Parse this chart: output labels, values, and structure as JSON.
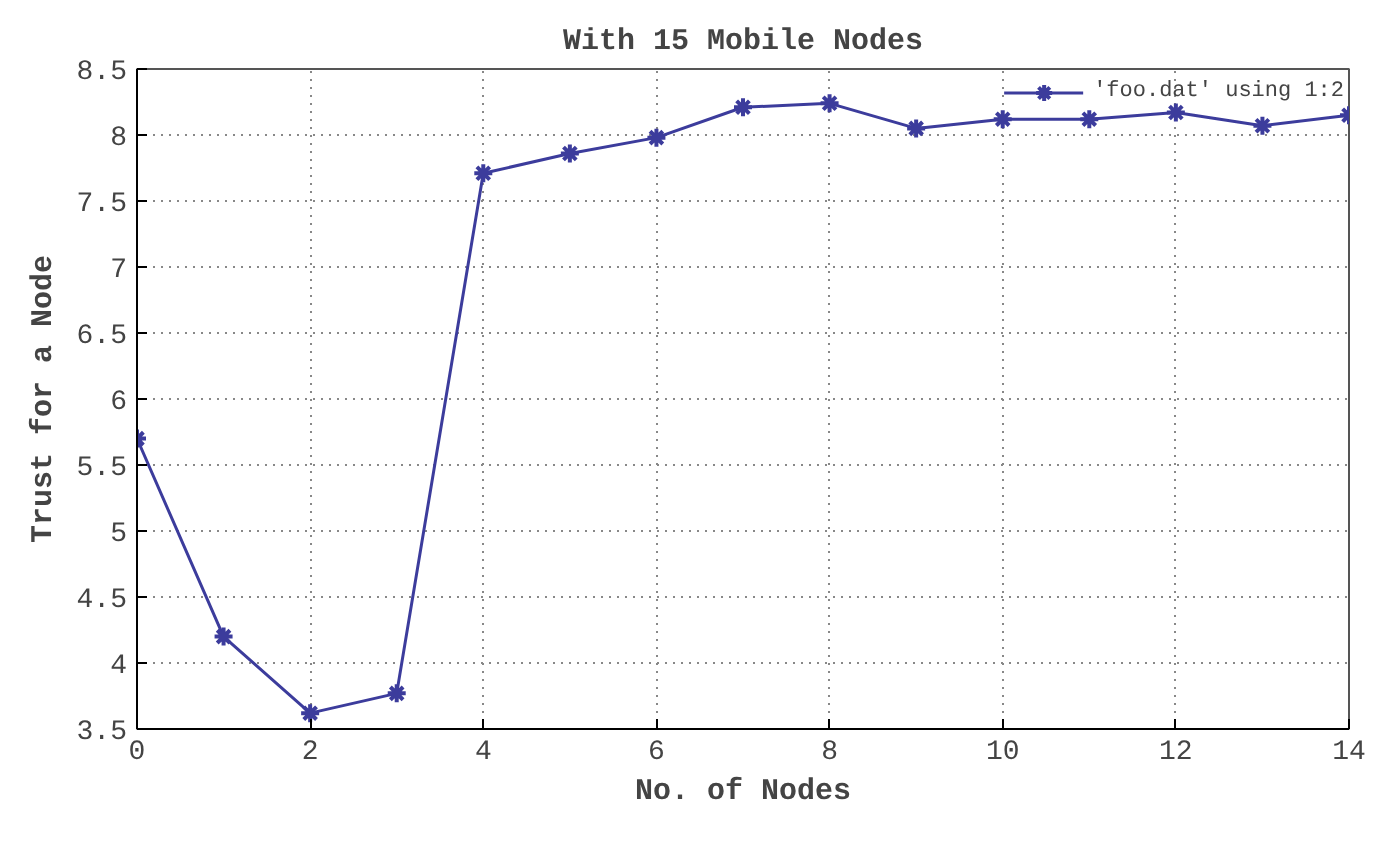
{
  "chart_data": {
    "type": "line",
    "title": "With 15 Mobile Nodes",
    "xlabel": "No. of Nodes",
    "ylabel": "Trust for a Node",
    "x": [
      0,
      1,
      2,
      3,
      4,
      5,
      6,
      7,
      8,
      9,
      10,
      11,
      12,
      13,
      14
    ],
    "series": [
      {
        "name": "'foo.dat' using 1:2",
        "color": "#3c3c9c",
        "values": [
          5.7,
          4.2,
          3.62,
          3.77,
          7.71,
          7.86,
          7.98,
          8.21,
          8.24,
          8.05,
          8.12,
          8.12,
          8.17,
          8.07,
          8.15
        ]
      }
    ],
    "xlim": [
      0,
      14
    ],
    "xticks": [
      0,
      2,
      4,
      6,
      8,
      10,
      12,
      14
    ],
    "ylim": [
      3.5,
      8.5
    ],
    "yticks": [
      3.5,
      4,
      4.5,
      5,
      5.5,
      6,
      6.5,
      7,
      7.5,
      8,
      8.5
    ],
    "grid": true,
    "legend": "top right",
    "marker": "cross",
    "line_style": "solid"
  }
}
